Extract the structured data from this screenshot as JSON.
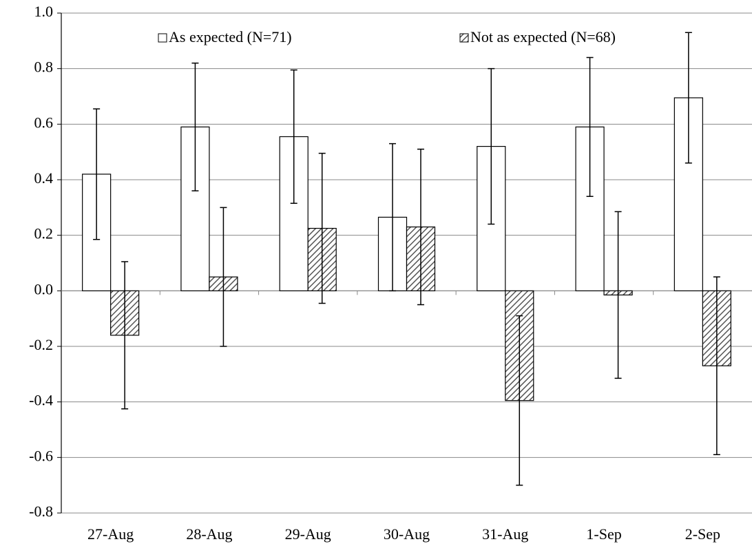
{
  "chart_data": {
    "type": "bar",
    "categories": [
      "27-Aug",
      "28-Aug",
      "29-Aug",
      "30-Aug",
      "31-Aug",
      "1-Sep",
      "2-Sep"
    ],
    "series": [
      {
        "name": "As expected (N=71)",
        "color": "#ffffff",
        "values": [
          0.42,
          0.59,
          0.555,
          0.265,
          0.52,
          0.59,
          0.695
        ],
        "errors": [
          0.235,
          0.23,
          0.24,
          0.265,
          0.28,
          0.25,
          0.235
        ]
      },
      {
        "name": "Not as expected (N=68)",
        "color": "#7f7f7f",
        "hatch": true,
        "values": [
          -0.16,
          0.05,
          0.225,
          0.23,
          -0.395,
          -0.015,
          -0.27
        ],
        "errors": [
          0.265,
          0.25,
          0.27,
          0.28,
          0.305,
          0.3,
          0.32
        ]
      }
    ],
    "ylim": [
      -0.8,
      1.0
    ],
    "yticks": [
      {
        "value": -0.8,
        "label": "-0.8"
      },
      {
        "value": -0.6,
        "label": "-0.6"
      },
      {
        "value": -0.4,
        "label": "-0.4"
      },
      {
        "value": -0.2,
        "label": "-0.2"
      },
      {
        "value": 0,
        "label": "0.0"
      },
      {
        "value": 0.2,
        "label": "0.2"
      },
      {
        "value": 0.4,
        "label": "0.4"
      },
      {
        "value": 0.6,
        "label": "0.6"
      },
      {
        "value": 0.8,
        "label": "0.8"
      },
      {
        "value": 1.0,
        "label": "1.0"
      }
    ],
    "grid": true,
    "legend": "top"
  }
}
